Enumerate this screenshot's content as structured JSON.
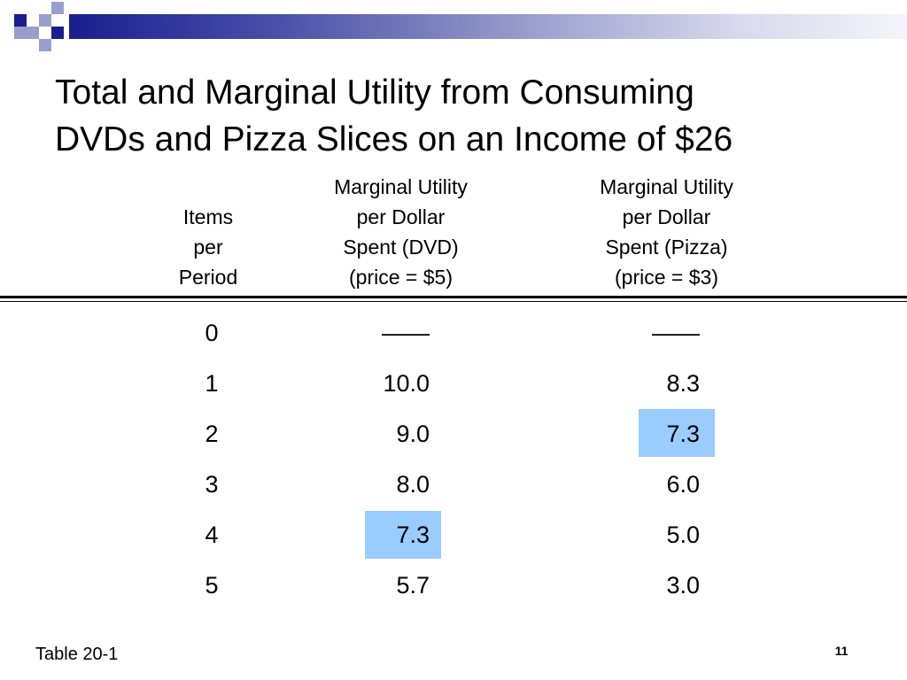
{
  "slide": {
    "title_lines": [
      "Total and Marginal Utility from Consuming",
      "DVDs and Pizza Slices on an Income of $26"
    ],
    "decor_colors": {
      "navy": "#1a1e8e",
      "lavender": "#9a9ecc",
      "highlight": "#99ccff"
    }
  },
  "table": {
    "headers": {
      "items": [
        "Items",
        "per",
        "Period"
      ],
      "dvd": [
        "Marginal Utility",
        "per Dollar",
        "Spent (DVD)",
        "(price = $5)"
      ],
      "pizza": [
        "Marginal Utility",
        "per Dollar",
        "Spent (Pizza)",
        "(price = $3)"
      ]
    },
    "rows": [
      {
        "items": "0",
        "dvd": "——",
        "pizza": "——"
      },
      {
        "items": "1",
        "dvd": "10.0",
        "pizza": "8.3"
      },
      {
        "items": "2",
        "dvd": "9.0",
        "pizza": "7.3"
      },
      {
        "items": "3",
        "dvd": "8.0",
        "pizza": "6.0"
      },
      {
        "items": "4",
        "dvd": "7.3",
        "pizza": "5.0"
      },
      {
        "items": "5",
        "dvd": "5.7",
        "pizza": "3.0"
      }
    ],
    "highlighted_cells": [
      {
        "row": 4,
        "column": "dvd"
      },
      {
        "row": 2,
        "column": "pizza"
      }
    ]
  },
  "footer": {
    "caption": "Table 20-1",
    "page_number": "11"
  }
}
